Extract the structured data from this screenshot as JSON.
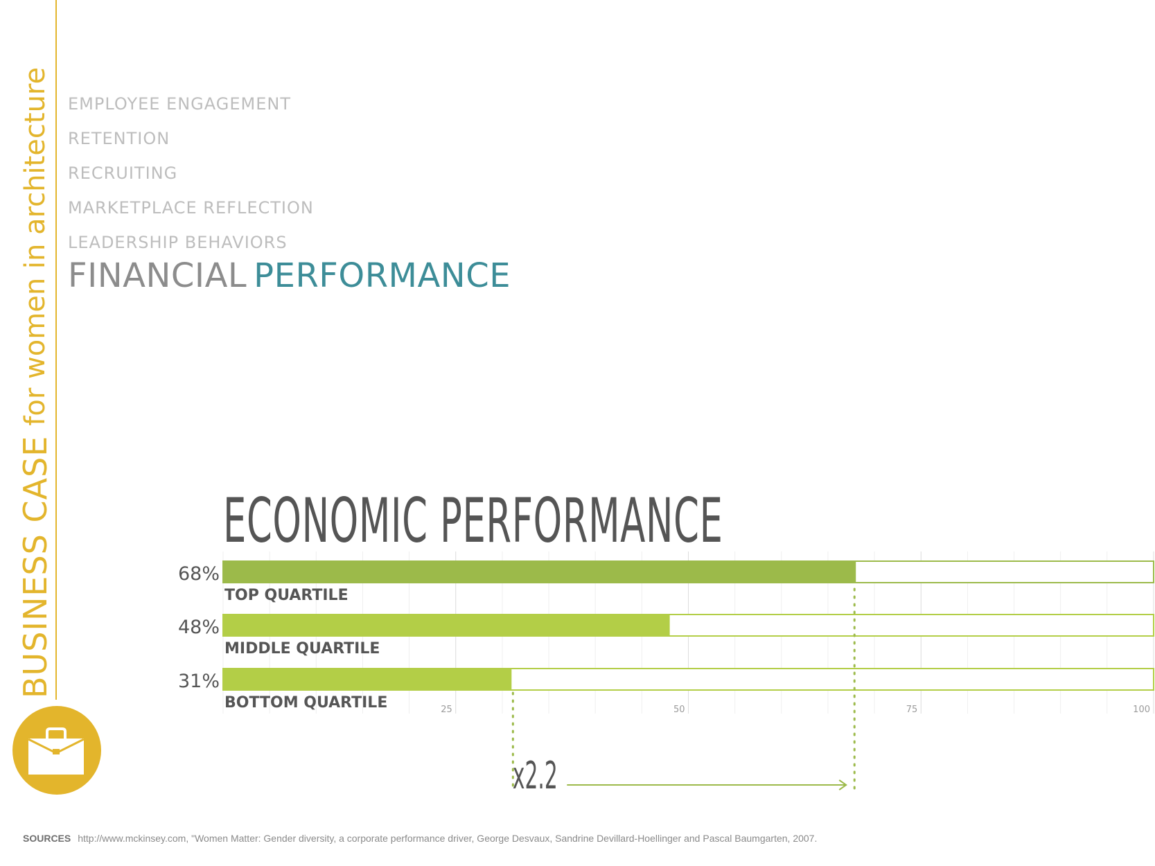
{
  "sidebar": {
    "title_bold": "BUSINESS CASE",
    "title_rest": "for women in architecture",
    "icon": "briefcase-icon",
    "accent_color": "#e3b52c"
  },
  "menu": {
    "items": [
      "EMPLOYEE ENGAGEMENT",
      "RETENTION",
      "RECRUITING",
      "MARKETPLACE REFLECTION",
      "LEADERSHIP BEHAVIORS"
    ]
  },
  "heading": {
    "word1": "FINANCIAL",
    "word2": "PERFORMANCE",
    "color1": "#8c8c8c",
    "color2": "#3d8d98"
  },
  "chart_data": {
    "type": "bar",
    "orientation": "horizontal",
    "title": "ECONOMIC PERFORMANCE",
    "categories": [
      "TOP QUARTILE",
      "MIDDLE QUARTILE",
      "BOTTOM QUARTILE"
    ],
    "values": [
      68,
      48,
      31
    ],
    "value_labels": [
      "68%",
      "48%",
      "31%"
    ],
    "colors": [
      "#9cba4a",
      "#b3ce47",
      "#b3ce47"
    ],
    "xlim": [
      0,
      100
    ],
    "ticks": [
      25,
      50,
      75,
      100
    ],
    "tick_labels": [
      "25",
      "50",
      "75",
      "100"
    ],
    "grid": true,
    "annotation": {
      "text": "x2.2",
      "from_value": 31,
      "to_value": 68,
      "color": "#9cba4a"
    }
  },
  "sources": {
    "label": "SOURCES",
    "text": "http://www.mckinsey.com, \"Women Matter: Gender diversity, a corporate performance driver,  George Desvaux, Sandrine Devillard-Hoellinger and Pascal Baumgarten, 2007."
  }
}
